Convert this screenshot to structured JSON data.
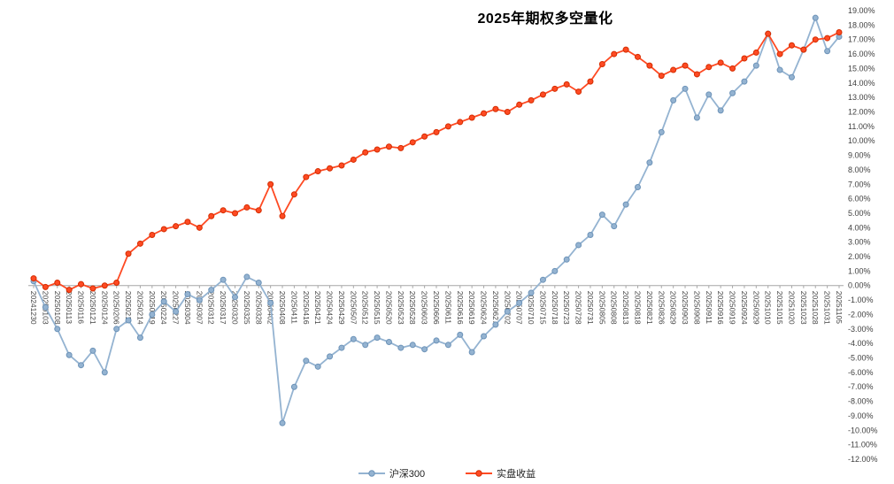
{
  "chart_data": {
    "type": "line",
    "title": "2025年期权多空量化",
    "legend_position": "bottom",
    "grid": false,
    "ylim": [
      -12,
      19
    ],
    "ytick_step": 1,
    "ytick_format": "0.00%",
    "axis_color": "#a6a6a6",
    "tick_label_color": "#3f3f3f",
    "categories": [
      "20241230",
      "20250103",
      "20250108",
      "20250113",
      "20250116",
      "20250121",
      "20250124",
      "20250206",
      "20250211",
      "20250214",
      "20250219",
      "20250224",
      "20250227",
      "20250304",
      "20250307",
      "20250312",
      "20250317",
      "20250320",
      "20250325",
      "20250328",
      "20250402",
      "20250408",
      "20250411",
      "20250416",
      "20250421",
      "20250424",
      "20250429",
      "20250507",
      "20250512",
      "20250515",
      "20250520",
      "20250523",
      "20250528",
      "20250603",
      "20250606",
      "20250611",
      "20250616",
      "20250619",
      "20250624",
      "20250627",
      "20250702",
      "20250707",
      "20250710",
      "20250715",
      "20250718",
      "20250723",
      "20250728",
      "20250731",
      "20250805",
      "20250808",
      "20250813",
      "20250818",
      "20250821",
      "20250826",
      "20250829",
      "20250903",
      "20250908",
      "20250911",
      "20250916",
      "20250919",
      "20250924",
      "20250929",
      "20251010",
      "20251015",
      "20251020",
      "20251023",
      "20251028",
      "20251031",
      "20251105"
    ],
    "series": [
      {
        "name": "沪深300",
        "color": "#94b3d1",
        "marker_stroke": "#6d93b8",
        "values": [
          0.3,
          -1.5,
          -3.0,
          -4.8,
          -5.5,
          -4.5,
          -6.0,
          -3.0,
          -2.4,
          -3.6,
          -2.0,
          -1.1,
          -1.8,
          -0.6,
          -1.0,
          -0.3,
          0.4,
          -0.8,
          0.6,
          0.2,
          -1.2,
          -9.5,
          -7.0,
          -5.2,
          -5.6,
          -4.9,
          -4.3,
          -3.7,
          -4.1,
          -3.6,
          -3.9,
          -4.3,
          -4.1,
          -4.4,
          -3.8,
          -4.1,
          -3.4,
          -4.6,
          -3.5,
          -2.7,
          -1.8,
          -1.2,
          -0.5,
          0.4,
          1.0,
          1.8,
          2.8,
          3.5,
          4.9,
          4.1,
          5.6,
          6.8,
          8.5,
          10.6,
          12.8,
          13.6,
          11.6,
          13.2,
          12.1,
          13.3,
          14.1,
          15.2,
          17.4,
          14.9,
          14.4,
          16.3,
          18.5,
          16.2,
          17.2
        ]
      },
      {
        "name": "实盘收益",
        "color": "#fe4a23",
        "marker_stroke": "#d42d00",
        "values": [
          0.5,
          -0.1,
          0.2,
          -0.3,
          0.1,
          -0.2,
          0.0,
          0.2,
          2.2,
          2.9,
          3.5,
          3.9,
          4.1,
          4.4,
          4.0,
          4.8,
          5.2,
          5.0,
          5.4,
          5.2,
          7.0,
          4.8,
          6.3,
          7.5,
          7.9,
          8.1,
          8.3,
          8.7,
          9.2,
          9.4,
          9.6,
          9.5,
          9.9,
          10.3,
          10.6,
          11.0,
          11.3,
          11.6,
          11.9,
          12.2,
          12.0,
          12.5,
          12.8,
          13.2,
          13.6,
          13.9,
          13.4,
          14.1,
          15.3,
          16.0,
          16.3,
          15.8,
          15.2,
          14.5,
          14.9,
          15.2,
          14.6,
          15.1,
          15.4,
          15.0,
          15.7,
          16.1,
          17.4,
          16.0,
          16.6,
          16.3,
          17.0,
          17.1,
          17.5
        ]
      }
    ]
  }
}
